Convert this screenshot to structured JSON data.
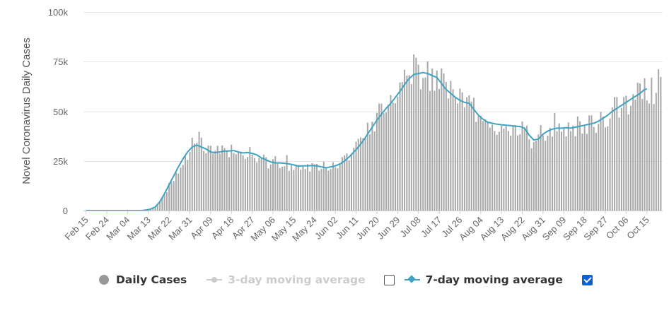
{
  "chart_data": {
    "type": "bar+line",
    "title": "",
    "xlabel": "",
    "ylabel": "Novel Coronavirus Daily Cases",
    "ylim": [
      0,
      100000
    ],
    "y_ticks": [
      0,
      25000,
      50000,
      75000,
      100000
    ],
    "y_tick_labels": [
      "0",
      "25k",
      "50k",
      "75k",
      "100k"
    ],
    "x_tick_labels": [
      "Feb 15",
      "Feb 24",
      "Mar 04",
      "Mar 13",
      "Mar 22",
      "Mar 31",
      "Apr 09",
      "Apr 18",
      "Apr 27",
      "May 06",
      "May 15",
      "May 24",
      "Jun 02",
      "Jun 11",
      "Jun 20",
      "Jun 29",
      "Jul 08",
      "Jul 17",
      "Jul 26",
      "Aug 04",
      "Aug 13",
      "Aug 22",
      "Aug 31",
      "Sep 09",
      "Sep 18",
      "Sep 27",
      "Oct 06",
      "Oct 15"
    ],
    "days_between_ticks": 9,
    "n_days": 250,
    "legend_position": "bottom",
    "colors": {
      "bars": "#a8a8a8",
      "avg7": "#3ea3c1",
      "avg3_disabled": "#cccccc",
      "axis": "#cccccc",
      "grid": "#e6e6e6"
    },
    "series": [
      {
        "name": "Daily Cases",
        "type": "bar",
        "anchors": [
          [
            0,
            0
          ],
          [
            25,
            0
          ],
          [
            27,
            500
          ],
          [
            29,
            1500
          ],
          [
            31,
            3000
          ],
          [
            33,
            6000
          ],
          [
            35,
            10000
          ],
          [
            37,
            15000
          ],
          [
            39,
            19000
          ],
          [
            41,
            23000
          ],
          [
            43,
            27000
          ],
          [
            45,
            31000
          ],
          [
            47,
            33000
          ],
          [
            49,
            33500
          ],
          [
            51,
            32000
          ],
          [
            53,
            30000
          ],
          [
            55,
            29000
          ],
          [
            57,
            30000
          ],
          [
            59,
            29500
          ],
          [
            61,
            30000
          ],
          [
            63,
            31000
          ],
          [
            65,
            30000
          ],
          [
            67,
            29000
          ],
          [
            70,
            29500
          ],
          [
            73,
            28000
          ],
          [
            76,
            26000
          ],
          [
            79,
            24000
          ],
          [
            82,
            24500
          ],
          [
            85,
            23000
          ],
          [
            88,
            22500
          ],
          [
            91,
            22000
          ],
          [
            94,
            22000
          ],
          [
            97,
            22000
          ],
          [
            100,
            22500
          ],
          [
            103,
            22000
          ],
          [
            106,
            21500
          ],
          [
            109,
            23000
          ],
          [
            112,
            25000
          ],
          [
            115,
            28000
          ],
          [
            118,
            33000
          ],
          [
            121,
            38000
          ],
          [
            124,
            43000
          ],
          [
            127,
            48000
          ],
          [
            130,
            53000
          ],
          [
            133,
            57000
          ],
          [
            136,
            62000
          ],
          [
            139,
            66000
          ],
          [
            142,
            68000
          ],
          [
            145,
            69000
          ],
          [
            148,
            69000
          ],
          [
            151,
            68000
          ],
          [
            154,
            65000
          ],
          [
            157,
            60000
          ],
          [
            160,
            56000
          ],
          [
            163,
            54000
          ],
          [
            166,
            53000
          ],
          [
            169,
            50000
          ],
          [
            172,
            46000
          ],
          [
            175,
            43000
          ],
          [
            178,
            43000
          ],
          [
            181,
            42500
          ],
          [
            184,
            42000
          ],
          [
            187,
            42000
          ],
          [
            190,
            41000
          ],
          [
            193,
            36000
          ],
          [
            196,
            35000
          ],
          [
            199,
            38000
          ],
          [
            202,
            40000
          ],
          [
            205,
            41500
          ],
          [
            208,
            41500
          ],
          [
            211,
            42000
          ],
          [
            214,
            42500
          ],
          [
            217,
            43500
          ],
          [
            220,
            44000
          ],
          [
            223,
            46000
          ],
          [
            226,
            48000
          ],
          [
            229,
            51000
          ],
          [
            232,
            53000
          ],
          [
            235,
            55000
          ],
          [
            238,
            58000
          ],
          [
            241,
            62000
          ],
          [
            243,
            60000
          ]
        ],
        "noise_amplitude": 0.13,
        "noise_seed": 7
      },
      {
        "name": "3-day moving average",
        "type": "line",
        "visible": false
      },
      {
        "name": "7-day moving average",
        "type": "line",
        "visible": true,
        "anchors": [
          [
            0,
            0
          ],
          [
            24,
            0
          ],
          [
            26,
            300
          ],
          [
            28,
            700
          ],
          [
            30,
            1800
          ],
          [
            32,
            4500
          ],
          [
            34,
            8500
          ],
          [
            36,
            13000
          ],
          [
            38,
            17500
          ],
          [
            40,
            22000
          ],
          [
            42,
            26000
          ],
          [
            44,
            29500
          ],
          [
            46,
            32000
          ],
          [
            48,
            33000
          ],
          [
            50,
            32000
          ],
          [
            52,
            31000
          ],
          [
            54,
            29500
          ],
          [
            56,
            29200
          ],
          [
            58,
            29500
          ],
          [
            60,
            30000
          ],
          [
            62,
            30000
          ],
          [
            64,
            30200
          ],
          [
            66,
            29500
          ],
          [
            68,
            29000
          ],
          [
            70,
            29200
          ],
          [
            72,
            28800
          ],
          [
            74,
            28000
          ],
          [
            76,
            26500
          ],
          [
            78,
            25500
          ],
          [
            80,
            24500
          ],
          [
            82,
            24000
          ],
          [
            84,
            24000
          ],
          [
            86,
            23800
          ],
          [
            88,
            23500
          ],
          [
            90,
            23000
          ],
          [
            92,
            22300
          ],
          [
            94,
            22500
          ],
          [
            96,
            22500
          ],
          [
            98,
            22700
          ],
          [
            100,
            22500
          ],
          [
            102,
            22000
          ],
          [
            104,
            21500
          ],
          [
            106,
            22000
          ],
          [
            108,
            22500
          ],
          [
            110,
            23500
          ],
          [
            112,
            25000
          ],
          [
            114,
            27000
          ],
          [
            116,
            29500
          ],
          [
            118,
            32000
          ],
          [
            120,
            35000
          ],
          [
            122,
            38500
          ],
          [
            124,
            42000
          ],
          [
            126,
            45500
          ],
          [
            128,
            48500
          ],
          [
            130,
            51500
          ],
          [
            132,
            54000
          ],
          [
            134,
            57000
          ],
          [
            136,
            60000
          ],
          [
            138,
            63500
          ],
          [
            140,
            66500
          ],
          [
            142,
            68500
          ],
          [
            144,
            69000
          ],
          [
            146,
            69500
          ],
          [
            148,
            69000
          ],
          [
            150,
            68000
          ],
          [
            152,
            67000
          ],
          [
            154,
            64000
          ],
          [
            156,
            61000
          ],
          [
            158,
            59000
          ],
          [
            160,
            57000
          ],
          [
            162,
            55500
          ],
          [
            164,
            54500
          ],
          [
            166,
            54000
          ],
          [
            168,
            51000
          ],
          [
            170,
            48000
          ],
          [
            172,
            46000
          ],
          [
            174,
            44500
          ],
          [
            176,
            44000
          ],
          [
            178,
            43500
          ],
          [
            180,
            43200
          ],
          [
            182,
            43000
          ],
          [
            184,
            42800
          ],
          [
            186,
            42500
          ],
          [
            188,
            42300
          ],
          [
            190,
            41500
          ],
          [
            192,
            38000
          ],
          [
            194,
            35500
          ],
          [
            196,
            36000
          ],
          [
            198,
            38500
          ],
          [
            200,
            40000
          ],
          [
            202,
            41000
          ],
          [
            204,
            41500
          ],
          [
            206,
            41500
          ],
          [
            208,
            41700
          ],
          [
            210,
            41500
          ],
          [
            212,
            42000
          ],
          [
            214,
            42500
          ],
          [
            216,
            43000
          ],
          [
            218,
            43500
          ],
          [
            220,
            44000
          ],
          [
            222,
            45000
          ],
          [
            224,
            46500
          ],
          [
            226,
            48000
          ],
          [
            228,
            50000
          ],
          [
            230,
            51500
          ],
          [
            232,
            53000
          ],
          [
            234,
            54500
          ],
          [
            236,
            56000
          ],
          [
            238,
            57500
          ],
          [
            240,
            59000
          ],
          [
            242,
            61000
          ],
          [
            243,
            61200
          ]
        ]
      }
    ]
  },
  "legend": {
    "items": [
      {
        "label": "Daily Cases",
        "enabled": true
      },
      {
        "label": "3-day moving average",
        "enabled": false
      },
      {
        "label": "7-day moving average",
        "enabled": true
      }
    ]
  }
}
